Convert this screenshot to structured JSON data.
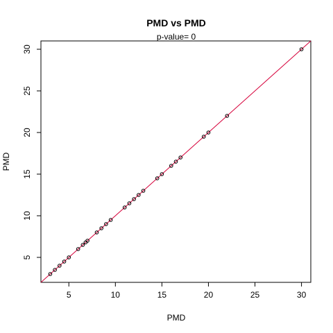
{
  "chart_data": {
    "type": "scatter",
    "title": "PMD  vs  PMD",
    "subtitle": "p-value= 0",
    "xlabel": "PMD",
    "ylabel": "PMD",
    "xlim": [
      2,
      31
    ],
    "ylim": [
      2,
      31
    ],
    "xticks": [
      5,
      10,
      15,
      20,
      25,
      30
    ],
    "yticks": [
      5,
      10,
      15,
      20,
      25,
      30
    ],
    "grid": false,
    "marker": "open-circle",
    "point_color": "#000000",
    "line_color": "#d6003a",
    "reference_line": {
      "type": "identity",
      "slope": 1,
      "intercept": 0
    },
    "x": [
      3,
      3.5,
      4,
      4.5,
      5,
      6,
      6.5,
      6.8,
      7,
      8,
      8.5,
      9,
      9.5,
      11,
      11.5,
      12,
      12.5,
      13,
      14.5,
      15,
      16,
      16.5,
      17,
      19.5,
      20,
      22,
      30
    ],
    "y": [
      3,
      3.5,
      4,
      4.5,
      5,
      6,
      6.5,
      6.8,
      7,
      8,
      8.5,
      9,
      9.5,
      11,
      11.5,
      12,
      12.5,
      13,
      14.5,
      15,
      16,
      16.5,
      17,
      19.5,
      20,
      22,
      30
    ]
  }
}
